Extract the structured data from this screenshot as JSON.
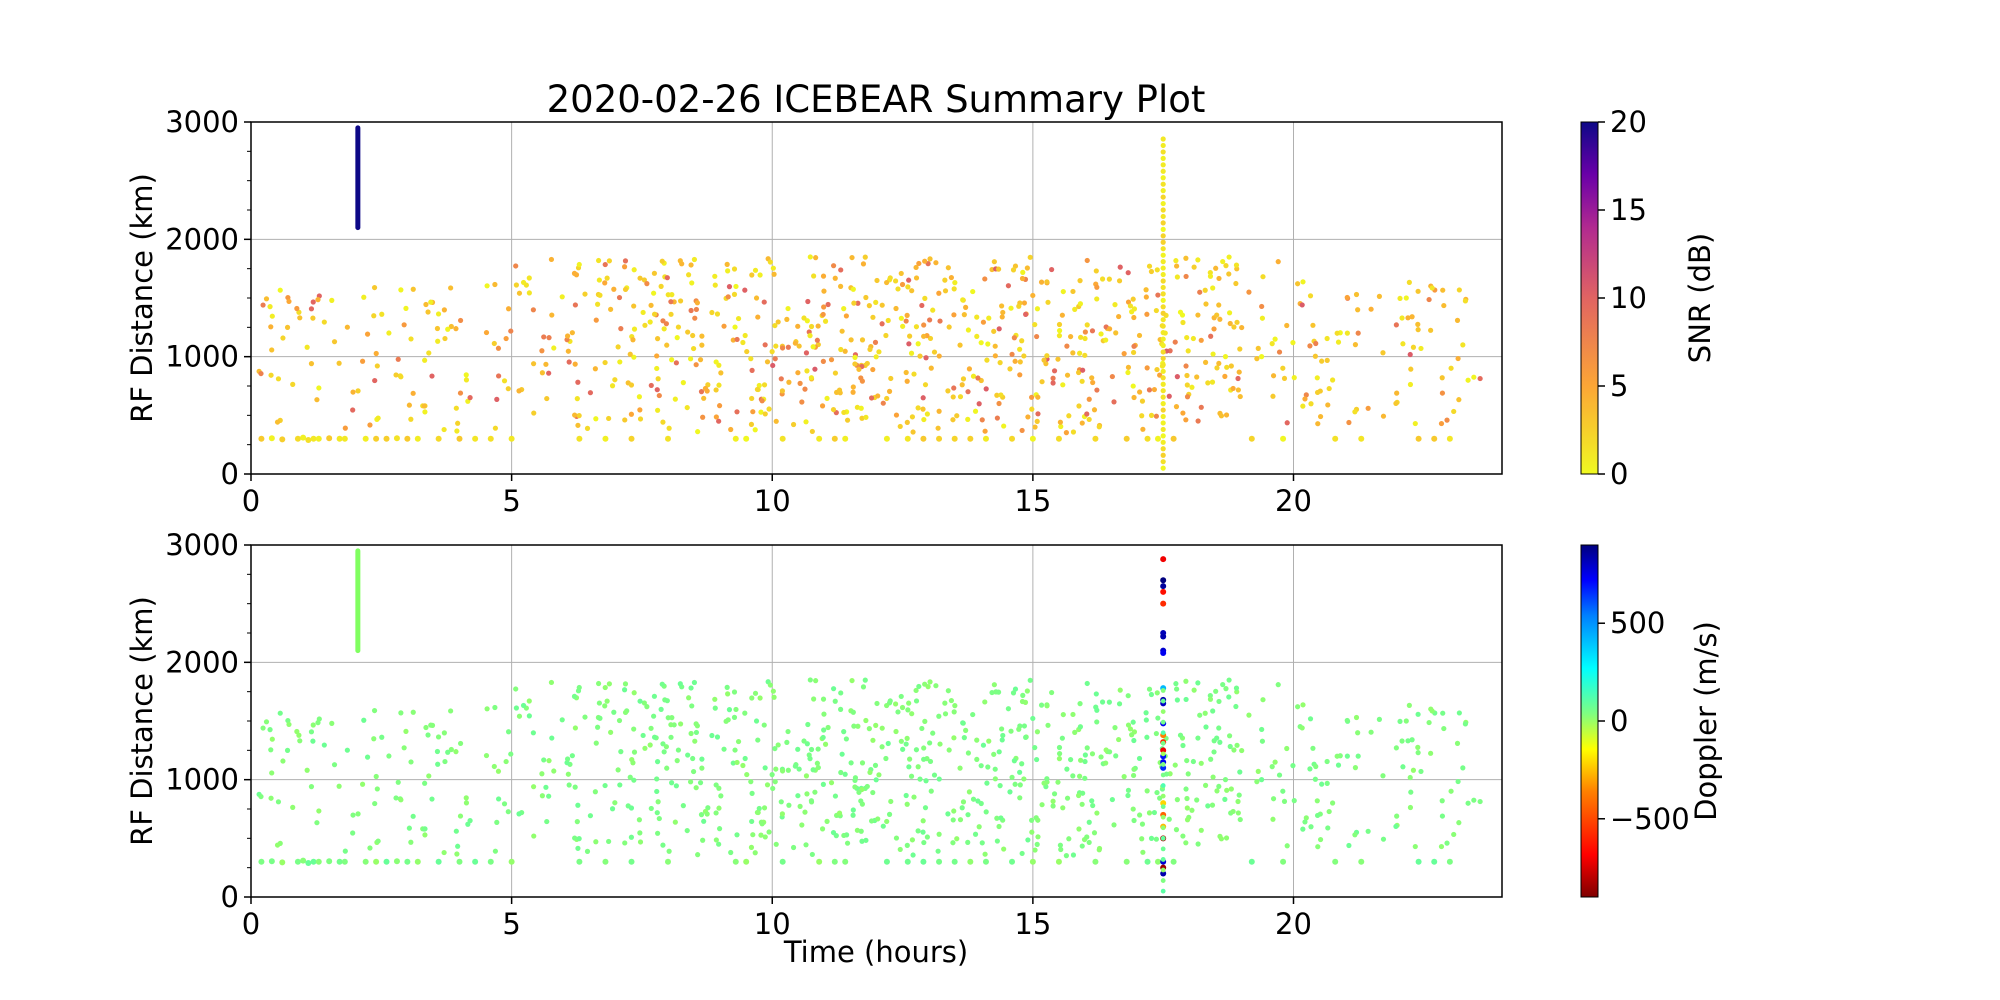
{
  "title": "2020-02-26 ICEBEAR Summary Plot",
  "chart_data": [
    {
      "type": "scatter",
      "panel": "top",
      "xlabel": "",
      "ylabel": "RF Distance (km)",
      "xlim": [
        0,
        24
      ],
      "ylim": [
        0,
        3000
      ],
      "xticks": [
        "0",
        "5",
        "10",
        "15",
        "20"
      ],
      "yticks": [
        "0",
        "1000",
        "2000",
        "3000"
      ],
      "grid": true,
      "color_variable": "snr",
      "colorbar": {
        "label": "SNR (dB)",
        "range": [
          0,
          20
        ],
        "ticks": [
          "0",
          "5",
          "10",
          "15",
          "20"
        ],
        "colormap": "plasma_r",
        "colors": [
          "#f0f921",
          "#fca636",
          "#e16462",
          "#b12a90",
          "#6a00a8",
          "#0d0887"
        ]
      },
      "vertical_bar": {
        "x": 2.05,
        "y_range": [
          2100,
          2950
        ],
        "color": "#0d0887"
      },
      "point_groups": [
        {
          "description_values": "y near 300 km band",
          "x": [
            0.2,
            0.4,
            0.6,
            0.9,
            1.0,
            1.1,
            1.2,
            1.3,
            1.5,
            1.7,
            1.8,
            2.2,
            2.4,
            2.6,
            2.8,
            3.0,
            3.2,
            3.6,
            4.0,
            4.3,
            4.6,
            5.0,
            6.3,
            6.8,
            7.3,
            8.0,
            9.3,
            9.5,
            10.2,
            10.9,
            11.2,
            11.4,
            12.2,
            12.6,
            12.9,
            13.2,
            13.5,
            13.8,
            14.1,
            14.6,
            15.0,
            15.5,
            16.2,
            16.8,
            17.2,
            17.4,
            17.7,
            19.2,
            19.8,
            20.8,
            21.3,
            22.4,
            22.7,
            23.0
          ],
          "y": [
            300,
            305,
            295,
            300,
            310,
            290,
            300,
            300,
            305,
            300,
            300,
            300,
            300,
            300,
            305,
            300,
            300,
            300,
            300,
            300,
            300,
            300,
            300,
            300,
            300,
            300,
            300,
            300,
            300,
            300,
            300,
            300,
            300,
            300,
            300,
            300,
            300,
            300,
            300,
            300,
            300,
            300,
            300,
            300,
            300,
            300,
            300,
            300,
            300,
            300,
            300,
            300,
            300,
            300
          ]
        }
      ],
      "vertical_column": {
        "x": 17.5,
        "y_range": [
          50,
          2900
        ]
      }
    },
    {
      "type": "scatter",
      "panel": "bottom",
      "xlabel": "Time (hours)",
      "ylabel": "RF Distance (km)",
      "xlim": [
        0,
        24
      ],
      "ylim": [
        0,
        3000
      ],
      "xticks": [
        "0",
        "5",
        "10",
        "15",
        "20"
      ],
      "yticks": [
        "0",
        "1000",
        "2000",
        "3000"
      ],
      "grid": true,
      "color_variable": "doppler",
      "colorbar": {
        "label": "Doppler (m/s)",
        "range": [
          -900,
          900
        ],
        "ticks": [
          "−500",
          "0",
          "500"
        ],
        "tick_values": [
          -500,
          0,
          500
        ],
        "colormap": "jet_r",
        "colors": [
          "#7f0000",
          "#ff0000",
          "#ff8000",
          "#ffff00",
          "#80ff80",
          "#00ffff",
          "#0080ff",
          "#0000ff",
          "#00007f"
        ]
      },
      "vertical_bar": {
        "x": 2.05,
        "y_range": [
          2100,
          2950
        ],
        "color": "#80ff60"
      },
      "column_points": {
        "x": 17.5,
        "y": [
          2880,
          2700,
          2650,
          2600,
          2500,
          2250,
          2220,
          2100,
          2080,
          1780,
          1680,
          1650,
          1480,
          1380,
          1320,
          1250,
          1200,
          1150,
          1100,
          800,
          700,
          600,
          500,
          300,
          250,
          200
        ],
        "doppler": [
          -700,
          900,
          850,
          -650,
          -600,
          800,
          820,
          760,
          700,
          350,
          820,
          780,
          700,
          -450,
          -600,
          -700,
          650,
          700,
          600,
          -300,
          -500,
          -350,
          -800,
          750,
          -850,
          820
        ]
      }
    }
  ]
}
